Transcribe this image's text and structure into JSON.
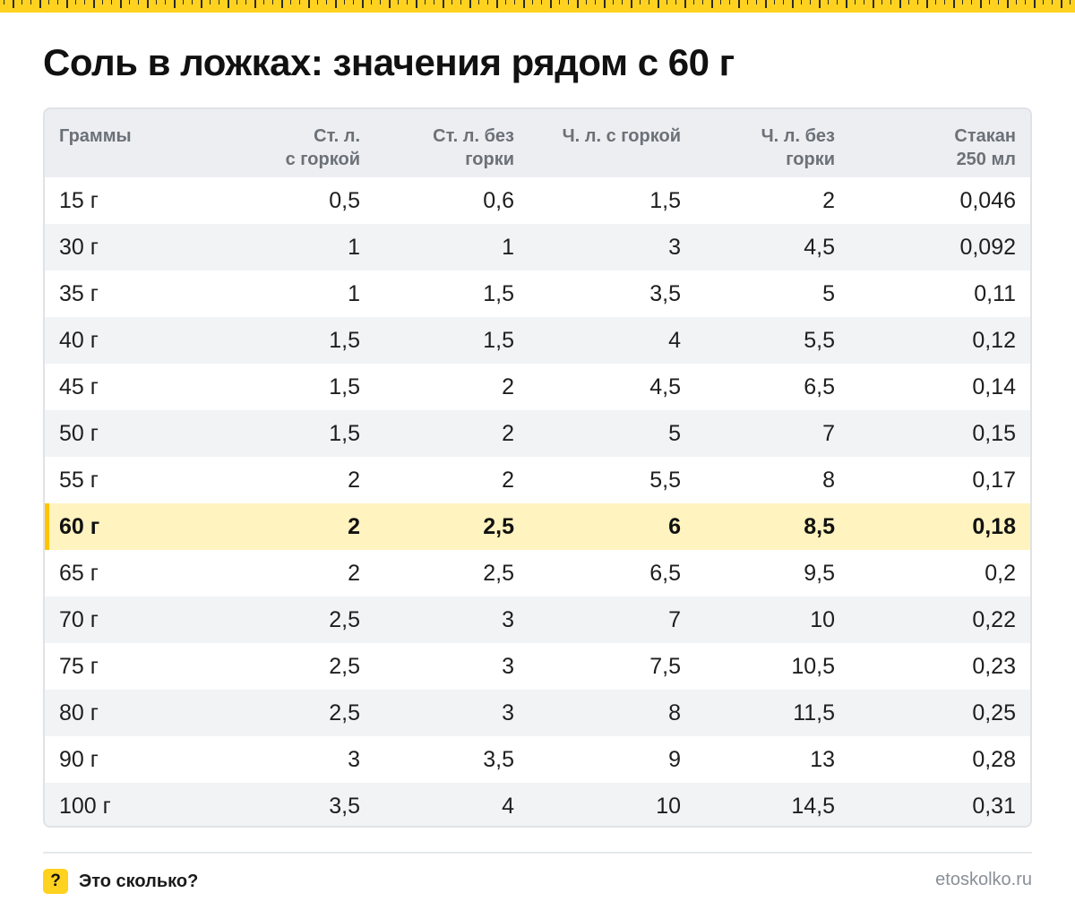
{
  "title": "Соль в ложках: значения рядом с 60 г",
  "table": {
    "headers": [
      [
        "Граммы"
      ],
      [
        "Ст. л.",
        "с горкой"
      ],
      [
        "Ст. л. без",
        "горки"
      ],
      [
        "Ч. л. с горкой"
      ],
      [
        "Ч. л. без",
        "горки"
      ],
      [
        "Стакан",
        "250 мл"
      ]
    ],
    "highlighted_row": 7,
    "rows": [
      [
        "15 г",
        "0,5",
        "0,6",
        "1,5",
        "2",
        "0,046"
      ],
      [
        "30 г",
        "1",
        "1",
        "3",
        "4,5",
        "0,092"
      ],
      [
        "35 г",
        "1",
        "1,5",
        "3,5",
        "5",
        "0,11"
      ],
      [
        "40 г",
        "1,5",
        "1,5",
        "4",
        "5,5",
        "0,12"
      ],
      [
        "45 г",
        "1,5",
        "2",
        "4,5",
        "6,5",
        "0,14"
      ],
      [
        "50 г",
        "1,5",
        "2",
        "5",
        "7",
        "0,15"
      ],
      [
        "55 г",
        "2",
        "2",
        "5,5",
        "8",
        "0,17"
      ],
      [
        "60 г",
        "2",
        "2,5",
        "6",
        "8,5",
        "0,18"
      ],
      [
        "65 г",
        "2",
        "2,5",
        "6,5",
        "9,5",
        "0,2"
      ],
      [
        "70 г",
        "2,5",
        "3",
        "7",
        "10",
        "0,22"
      ],
      [
        "75 г",
        "2,5",
        "3",
        "7,5",
        "10,5",
        "0,23"
      ],
      [
        "80 г",
        "2,5",
        "3",
        "8",
        "11,5",
        "0,25"
      ],
      [
        "90 г",
        "3",
        "3,5",
        "9",
        "13",
        "0,28"
      ],
      [
        "100 г",
        "3,5",
        "4",
        "10",
        "14,5",
        "0,31"
      ]
    ]
  },
  "footer": {
    "badge": "?",
    "brand": "Это сколько?",
    "url": "etoskolko.ru"
  },
  "colors": {
    "accent": "#ffd21f",
    "highlight_bg": "#fff3bf",
    "header_bg": "#eceef1",
    "stripe_bg": "#f2f3f5"
  }
}
